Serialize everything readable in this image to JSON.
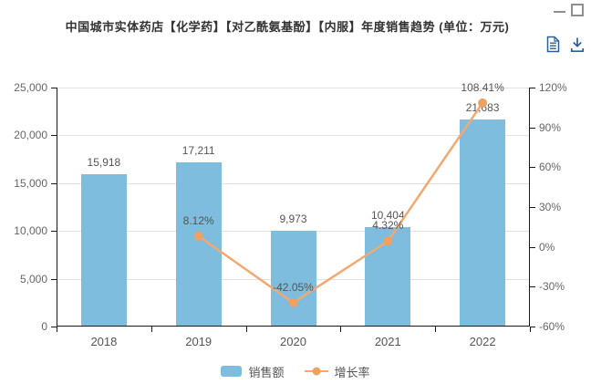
{
  "window": {
    "minimize_label": "minimize",
    "maximize_label": "maximize"
  },
  "header": {
    "title": "中国城市实体药店【化学药】【对乙酰氨基酚】【内服】年度销售趋势 (单位：万元)"
  },
  "toolbar": {
    "icons": [
      "report-icon",
      "download-icon"
    ]
  },
  "chart_data": {
    "type": "bar",
    "title": "中国城市实体药店【化学药】【对乙酰氨基酚】【内服】年度销售趋势 (单位：万元)",
    "categories": [
      "2018",
      "2019",
      "2020",
      "2021",
      "2022"
    ],
    "series": [
      {
        "name": "销售额",
        "type": "bar",
        "axis": "left",
        "color": "#7ebddd",
        "values": [
          15918,
          17211,
          9973,
          10404,
          21683
        ],
        "labels": [
          "15,918",
          "17,211",
          "9,973",
          "10,404",
          "21,683"
        ]
      },
      {
        "name": "增长率",
        "type": "line",
        "axis": "right",
        "color": "#f2a870",
        "point_color": "#efa15f",
        "values": [
          null,
          8.12,
          -42.05,
          4.32,
          108.41
        ],
        "labels": [
          null,
          "8.12%",
          "-42.05%",
          "4.32%",
          "108.41%"
        ]
      }
    ],
    "left_axis": {
      "min": 0,
      "max": 25000,
      "tick_values": [
        0,
        5000,
        10000,
        15000,
        20000,
        25000
      ],
      "tick_labels": [
        "0",
        "5,000",
        "10,000",
        "15,000",
        "20,000",
        "25,000"
      ]
    },
    "right_axis": {
      "min": -60,
      "max": 120,
      "tick_values": [
        -60,
        -30,
        0,
        30,
        60,
        90,
        120
      ],
      "tick_labels": [
        "-60%",
        "-30%",
        "0%",
        "30%",
        "60%",
        "90%",
        "120%"
      ]
    },
    "grid": true,
    "legend_position": "bottom"
  }
}
